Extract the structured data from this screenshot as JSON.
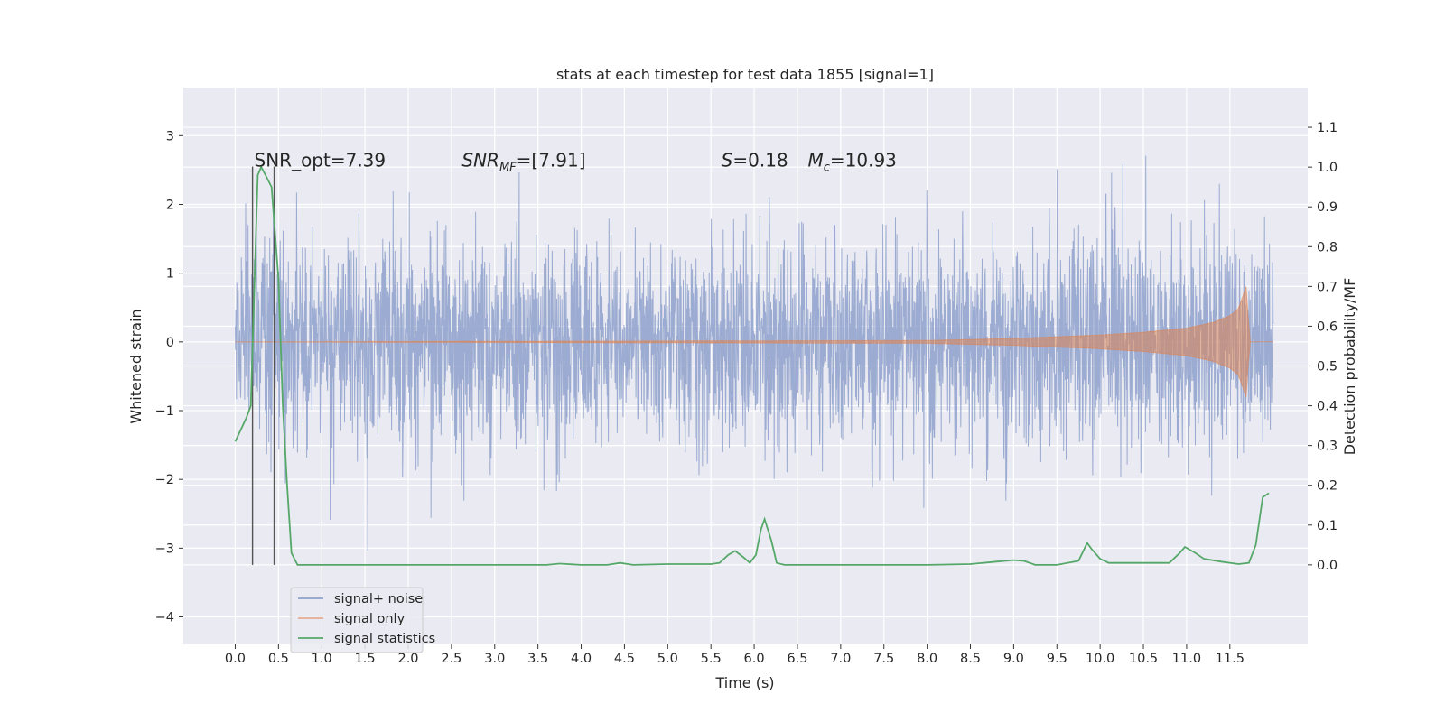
{
  "chart_data": {
    "type": "line",
    "title": "stats at each timestep for test data 1855 [signal=1]",
    "xlabel": "Time (s)",
    "ylabel_left": "Whitened strain",
    "ylabel_right": "Detection probability/MF",
    "xlim": [
      -0.6,
      12.4
    ],
    "ylim_left": [
      -4.4,
      3.7
    ],
    "ylim_right": [
      -0.2,
      1.2
    ],
    "x_ticks": [
      "0.0",
      "0.5",
      "1.0",
      "1.5",
      "2.0",
      "2.5",
      "3.0",
      "3.5",
      "4.0",
      "4.5",
      "5.0",
      "5.5",
      "6.0",
      "6.5",
      "7.0",
      "7.5",
      "8.0",
      "8.5",
      "9.0",
      "9.5",
      "10.0",
      "10.5",
      "11.0",
      "11.5"
    ],
    "y_ticks_left": [
      "3",
      "2",
      "1",
      "0",
      "−1",
      "−2",
      "−3",
      "−4"
    ],
    "y_ticks_right": [
      "1.1",
      "1.0",
      "0.9",
      "0.8",
      "0.7",
      "0.6",
      "0.5",
      "0.4",
      "0.3",
      "0.2",
      "0.1",
      "0.0"
    ],
    "grid": true,
    "legend_position": "lower-left",
    "colors": {
      "signal_noise": "#8da0cb",
      "signal_only": "#dd8452",
      "signal_statistics": "#55a868",
      "vlines": "#555555",
      "background": "#eaeaf2"
    },
    "series": [
      {
        "name": "signal+ noise",
        "axis": "left",
        "x_range": [
          0.0,
          12.0
        ],
        "noise_std": 0.6,
        "peak_max": 3.33,
        "peak_min": -3.65
      },
      {
        "name": "signal only",
        "axis": "left",
        "envelope": [
          [
            0.0,
            0.0
          ],
          [
            8.0,
            0.02
          ],
          [
            9.0,
            0.05
          ],
          [
            10.0,
            0.1
          ],
          [
            10.5,
            0.14
          ],
          [
            11.0,
            0.2
          ],
          [
            11.3,
            0.28
          ],
          [
            11.5,
            0.38
          ],
          [
            11.6,
            0.48
          ],
          [
            11.7,
            0.85
          ],
          [
            11.72,
            0.0
          ],
          [
            12.0,
            0.0
          ]
        ]
      },
      {
        "name": "signal statistics",
        "axis": "right",
        "x": [
          0.0,
          0.13,
          0.18,
          0.26,
          0.3,
          0.35,
          0.42,
          0.5,
          0.55,
          0.6,
          0.65,
          0.72,
          1.0,
          2.0,
          3.0,
          3.6,
          3.75,
          4.0,
          4.3,
          4.45,
          4.6,
          5.0,
          5.5,
          5.6,
          5.7,
          5.78,
          5.87,
          5.95,
          6.02,
          6.08,
          6.12,
          6.2,
          6.26,
          6.35,
          7.0,
          8.0,
          8.5,
          8.8,
          9.0,
          9.12,
          9.25,
          9.5,
          9.75,
          9.85,
          9.9,
          10.0,
          10.1,
          10.5,
          10.8,
          10.92,
          10.98,
          11.1,
          11.2,
          11.4,
          11.6,
          11.72,
          11.8,
          11.88,
          11.95
        ],
        "values": [
          0.31,
          0.37,
          0.4,
          0.98,
          1.0,
          0.98,
          0.95,
          0.72,
          0.4,
          0.2,
          0.03,
          0.0,
          0.0,
          0.0,
          0.0,
          0.0,
          0.003,
          0.0,
          0.0,
          0.005,
          0.0,
          0.002,
          0.002,
          0.005,
          0.025,
          0.035,
          0.02,
          0.005,
          0.025,
          0.09,
          0.115,
          0.06,
          0.005,
          0.0,
          0.0,
          0.0,
          0.002,
          0.008,
          0.012,
          0.01,
          0.0,
          0.0,
          0.01,
          0.055,
          0.04,
          0.015,
          0.005,
          0.005,
          0.005,
          0.03,
          0.045,
          0.03,
          0.015,
          0.008,
          0.002,
          0.005,
          0.05,
          0.17,
          0.18
        ]
      }
    ],
    "vlines_x": [
      0.2,
      0.45
    ],
    "annotations": [
      {
        "x": 0.22,
        "y": 2.55,
        "label": "SNR_opt=7.39"
      },
      {
        "x": 2.62,
        "y": 2.55,
        "label_parts": [
          "SNR",
          "MF",
          "=[7.91]"
        ]
      },
      {
        "x": 5.62,
        "y": 2.55,
        "label_parts": [
          "S",
          "=0.18"
        ]
      },
      {
        "x": 6.62,
        "y": 2.55,
        "label_parts": [
          "M",
          "c",
          "=10.93"
        ]
      }
    ],
    "legend": [
      "signal+ noise",
      "signal only",
      "signal statistics"
    ]
  }
}
